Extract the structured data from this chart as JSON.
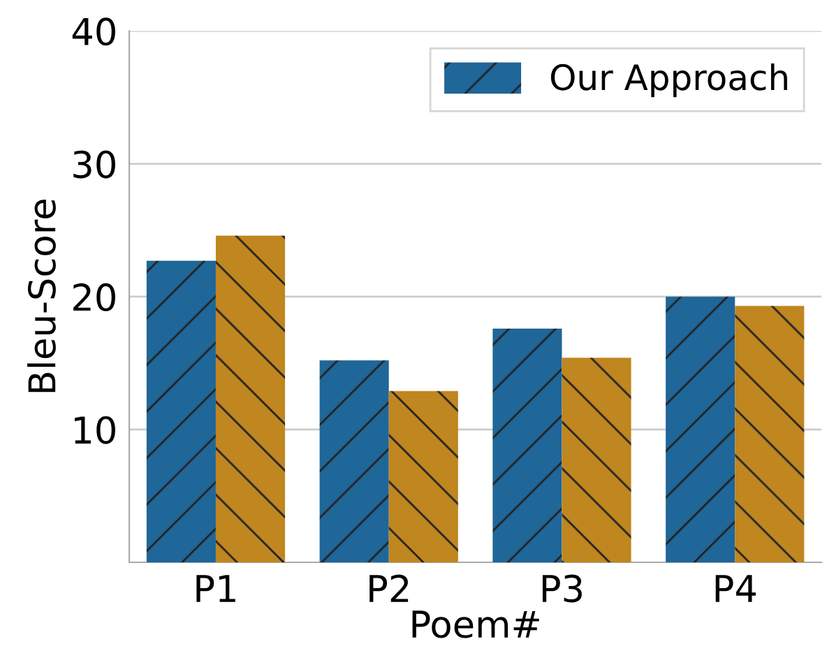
{
  "chart_data": {
    "type": "bar",
    "xlabel": "Poem#",
    "ylabel": "Bleu-Score",
    "categories": [
      "P1",
      "P2",
      "P3",
      "P4"
    ],
    "series": [
      {
        "name": "Our Approach",
        "color": "#1f6699",
        "values": [
          22.7,
          15.2,
          17.6,
          20.0
        ]
      },
      {
        "color": "#c0861f",
        "values": [
          24.6,
          12.9,
          15.4,
          19.3
        ]
      }
    ],
    "ylim": [
      0,
      40
    ],
    "yticks": [
      10,
      20,
      30,
      40
    ],
    "grid": "y",
    "legend": "top right"
  }
}
